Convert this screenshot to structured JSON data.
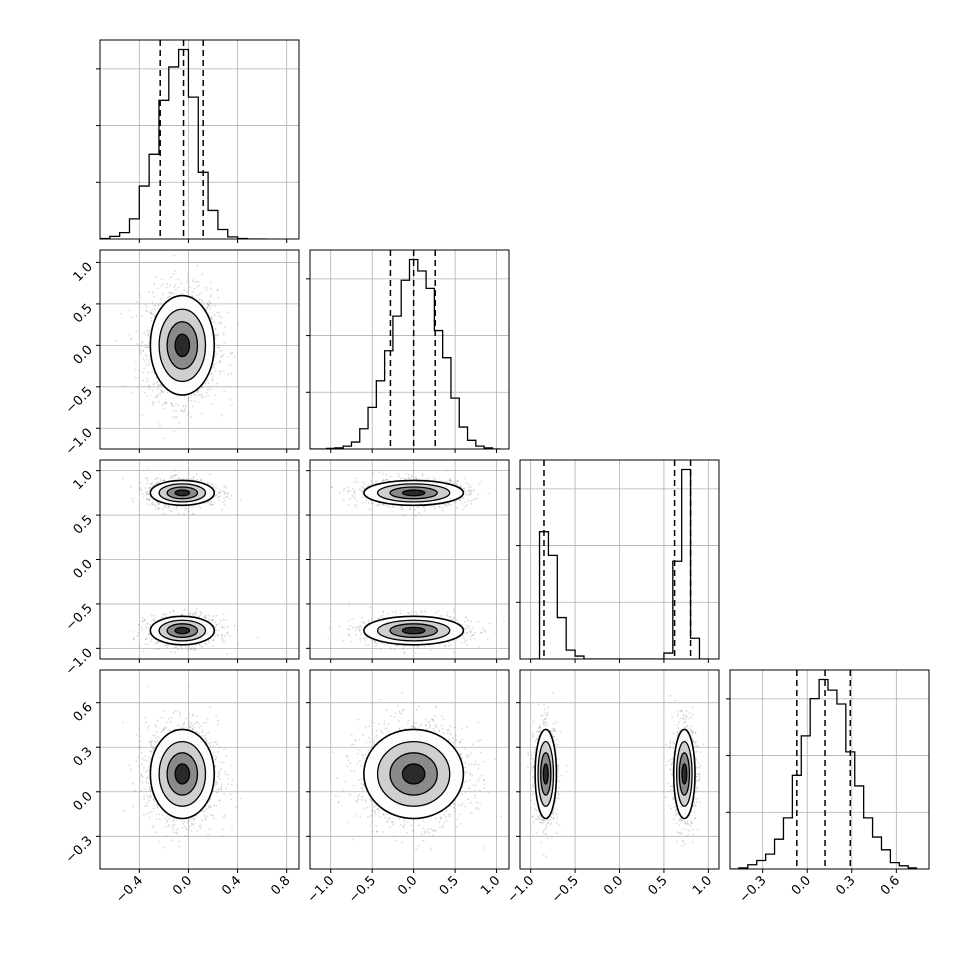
{
  "chart_data": {
    "type": "corner",
    "variables": 4,
    "grid": true,
    "style": {
      "axes_color": "#000000",
      "grid_color": "#b0b0b0",
      "scatter_color": "#999999",
      "fill_dark": "#000000",
      "fill_light": "#ffffff"
    },
    "tick_labels": {
      "x": [
        [
          "−0.4",
          "0.0",
          "0.4",
          "0.8"
        ],
        [
          "−1.0",
          "−0.5",
          "0.0",
          "0.5",
          "1.0"
        ],
        [
          "−1.0",
          "−0.5",
          "0.0",
          "0.5",
          "1.0"
        ],
        [
          "−0.3",
          "0.0",
          "0.3",
          "0.6"
        ]
      ],
      "y": [
        [],
        [
          "−1.0",
          "−0.5",
          "0.0",
          "0.5",
          "1.0"
        ],
        [
          "−1.0",
          "−0.5",
          "0.0",
          "0.5",
          "1.0"
        ],
        [
          "−0.3",
          "0.0",
          "0.3",
          "0.6"
        ]
      ]
    },
    "ticks": [
      [
        -0.4,
        0.0,
        0.4,
        0.8
      ],
      [
        -1.0,
        -0.5,
        0.0,
        0.5,
        1.0
      ],
      [
        -1.0,
        -0.5,
        0.0,
        0.5,
        1.0
      ],
      [
        -0.3,
        0.0,
        0.3,
        0.6
      ]
    ],
    "ranges": [
      [
        -0.72,
        0.9
      ],
      [
        -1.25,
        1.15
      ],
      [
        -1.12,
        1.12
      ],
      [
        -0.52,
        0.82
      ]
    ],
    "histograms": [
      {
        "bin_edges": [
          -0.72,
          -0.64,
          -0.56,
          -0.48,
          -0.4,
          -0.32,
          -0.24,
          -0.16,
          -0.08,
          0.0,
          0.08,
          0.16,
          0.24,
          0.32,
          0.4,
          0.48,
          0.56,
          0.64
        ],
        "counts": [
          1,
          5,
          12,
          38,
          100,
          160,
          262,
          325,
          358,
          268,
          126,
          54,
          18,
          4,
          1,
          0,
          0
        ],
        "quantiles": [
          -0.23,
          -0.04,
          0.12
        ]
      },
      {
        "bin_edges": [
          -1.25,
          -1.15,
          -1.05,
          -0.95,
          -0.85,
          -0.75,
          -0.65,
          -0.55,
          -0.45,
          -0.35,
          -0.25,
          -0.15,
          -0.05,
          0.05,
          0.15,
          0.25,
          0.35,
          0.45,
          0.55,
          0.65,
          0.75,
          0.85,
          0.95,
          1.05
        ],
        "counts": [
          0,
          0,
          1,
          2,
          5,
          12,
          35,
          72,
          118,
          170,
          230,
          292,
          328,
          308,
          278,
          205,
          158,
          88,
          38,
          15,
          5,
          2,
          0
        ],
        "quantiles": [
          -0.28,
          0.0,
          0.26
        ]
      },
      {
        "bin_edges": [
          -1.0,
          -0.9,
          -0.8,
          -0.7,
          -0.6,
          -0.5,
          -0.4,
          -0.3,
          -0.2,
          -0.1,
          0.0,
          0.1,
          0.2,
          0.3,
          0.4,
          0.5,
          0.6,
          0.7,
          0.8,
          0.9,
          1.0
        ],
        "counts": [
          0,
          43,
          35,
          14,
          3,
          1,
          0,
          0,
          0,
          0,
          0,
          0,
          0,
          0,
          0,
          2,
          33,
          64,
          7,
          0
        ],
        "quantiles": [
          -0.85,
          0.62,
          0.8
        ]
      },
      {
        "bin_edges": [
          -0.52,
          -0.46,
          -0.4,
          -0.34,
          -0.28,
          -0.22,
          -0.16,
          -0.1,
          -0.04,
          0.02,
          0.08,
          0.14,
          0.2,
          0.26,
          0.32,
          0.38,
          0.44,
          0.5,
          0.56,
          0.62,
          0.68,
          0.74
        ],
        "counts": [
          0,
          1,
          4,
          8,
          14,
          28,
          48,
          88,
          125,
          160,
          178,
          168,
          155,
          110,
          78,
          48,
          30,
          18,
          6,
          3,
          1
        ],
        "quantiles": [
          -0.07,
          0.12,
          0.29
        ]
      }
    ],
    "pairs": [
      {
        "row": 1,
        "col": 0,
        "clusters": [
          {
            "cx": -0.05,
            "cy": 0.0,
            "sx": 0.13,
            "sy": 0.3,
            "n": 1800
          }
        ]
      },
      {
        "row": 2,
        "col": 0,
        "clusters": [
          {
            "cx": -0.05,
            "cy": 0.75,
            "sx": 0.13,
            "sy": 0.07,
            "n": 1100
          },
          {
            "cx": -0.05,
            "cy": -0.8,
            "sx": 0.13,
            "sy": 0.08,
            "n": 900
          }
        ]
      },
      {
        "row": 2,
        "col": 1,
        "clusters": [
          {
            "cx": 0.0,
            "cy": 0.75,
            "sx": 0.3,
            "sy": 0.07,
            "n": 1100
          },
          {
            "cx": 0.0,
            "cy": -0.8,
            "sx": 0.3,
            "sy": 0.08,
            "n": 900
          }
        ]
      },
      {
        "row": 3,
        "col": 0,
        "clusters": [
          {
            "cx": -0.05,
            "cy": 0.12,
            "sx": 0.13,
            "sy": 0.15,
            "n": 1800
          }
        ]
      },
      {
        "row": 3,
        "col": 1,
        "clusters": [
          {
            "cx": 0.0,
            "cy": 0.12,
            "sx": 0.3,
            "sy": 0.15,
            "n": 1800
          }
        ]
      },
      {
        "row": 3,
        "col": 2,
        "clusters": [
          {
            "cx": -0.83,
            "cy": 0.12,
            "sx": 0.06,
            "sy": 0.15,
            "n": 900
          },
          {
            "cx": 0.73,
            "cy": 0.12,
            "sx": 0.06,
            "sy": 0.15,
            "n": 1100
          }
        ]
      }
    ]
  }
}
